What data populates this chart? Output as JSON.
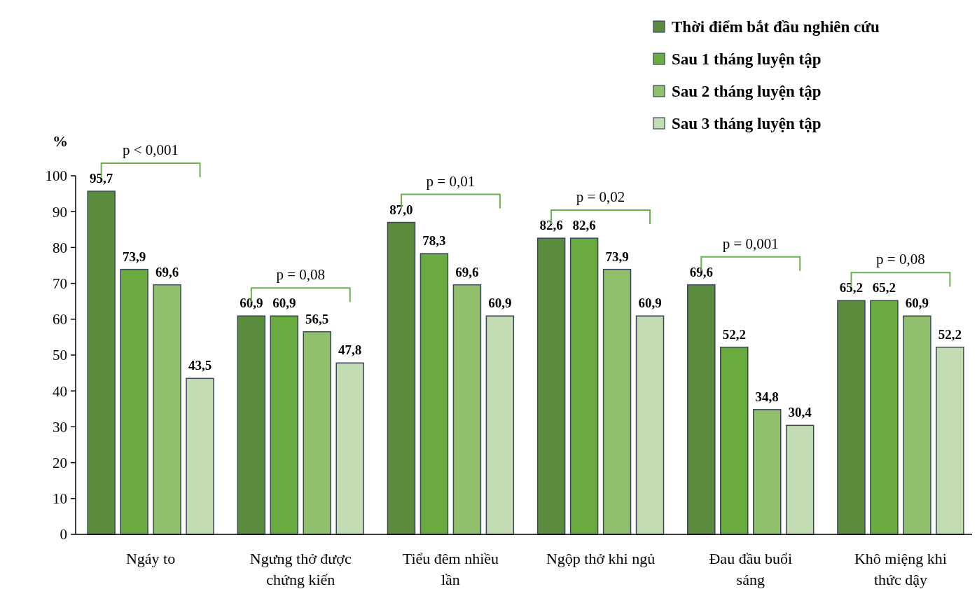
{
  "chart_data": {
    "type": "bar",
    "ylabel": "%",
    "categories": [
      "Ngáy to",
      "Ngưng thở được chứng kiến",
      "Tiểu đêm nhiều lần",
      "Ngộp thở khi ngủ",
      "Đau đầu buổi sáng",
      "Khô miệng khi thức dậy"
    ],
    "series": [
      {
        "name": "Thời điểm bắt đầu nghiên cứu",
        "color": "#5b8c3e",
        "values": [
          95.7,
          60.9,
          87.0,
          82.6,
          69.6,
          65.2
        ],
        "value_labels": [
          "95,7",
          "60,9",
          "87,0",
          "82,6",
          "69,6",
          "65,2"
        ]
      },
      {
        "name": "Sau 1 tháng luyện tập",
        "color": "#6aab3f",
        "values": [
          73.9,
          60.9,
          78.3,
          82.6,
          52.2,
          65.2
        ],
        "value_labels": [
          "73,9",
          "60,9",
          "78,3",
          "82,6",
          "52,2",
          "65,2"
        ]
      },
      {
        "name": "Sau 2 tháng luyện tập",
        "color": "#90c06c",
        "values": [
          69.6,
          56.5,
          69.6,
          73.9,
          34.8,
          60.9
        ],
        "value_labels": [
          "69,6",
          "56,5",
          "69,6",
          "73,9",
          "34,8",
          "60,9"
        ]
      },
      {
        "name": "Sau 3 tháng luyện tập",
        "color": "#c4dcb3",
        "values": [
          43.5,
          47.8,
          60.9,
          60.9,
          30.4,
          52.2
        ],
        "value_labels": [
          "43,5",
          "47,8",
          "60,9",
          "60,9",
          "30,4",
          "52,2"
        ]
      }
    ],
    "ylim": [
      0,
      100
    ],
    "yticks": [
      0,
      10,
      20,
      30,
      40,
      50,
      60,
      70,
      80,
      90,
      100
    ],
    "legend": "top right",
    "annotations": [
      "p < 0,001",
      "p = 0,08",
      "p = 0,01",
      "p = 0,02",
      "p = 0,001",
      "p = 0,08"
    ]
  }
}
